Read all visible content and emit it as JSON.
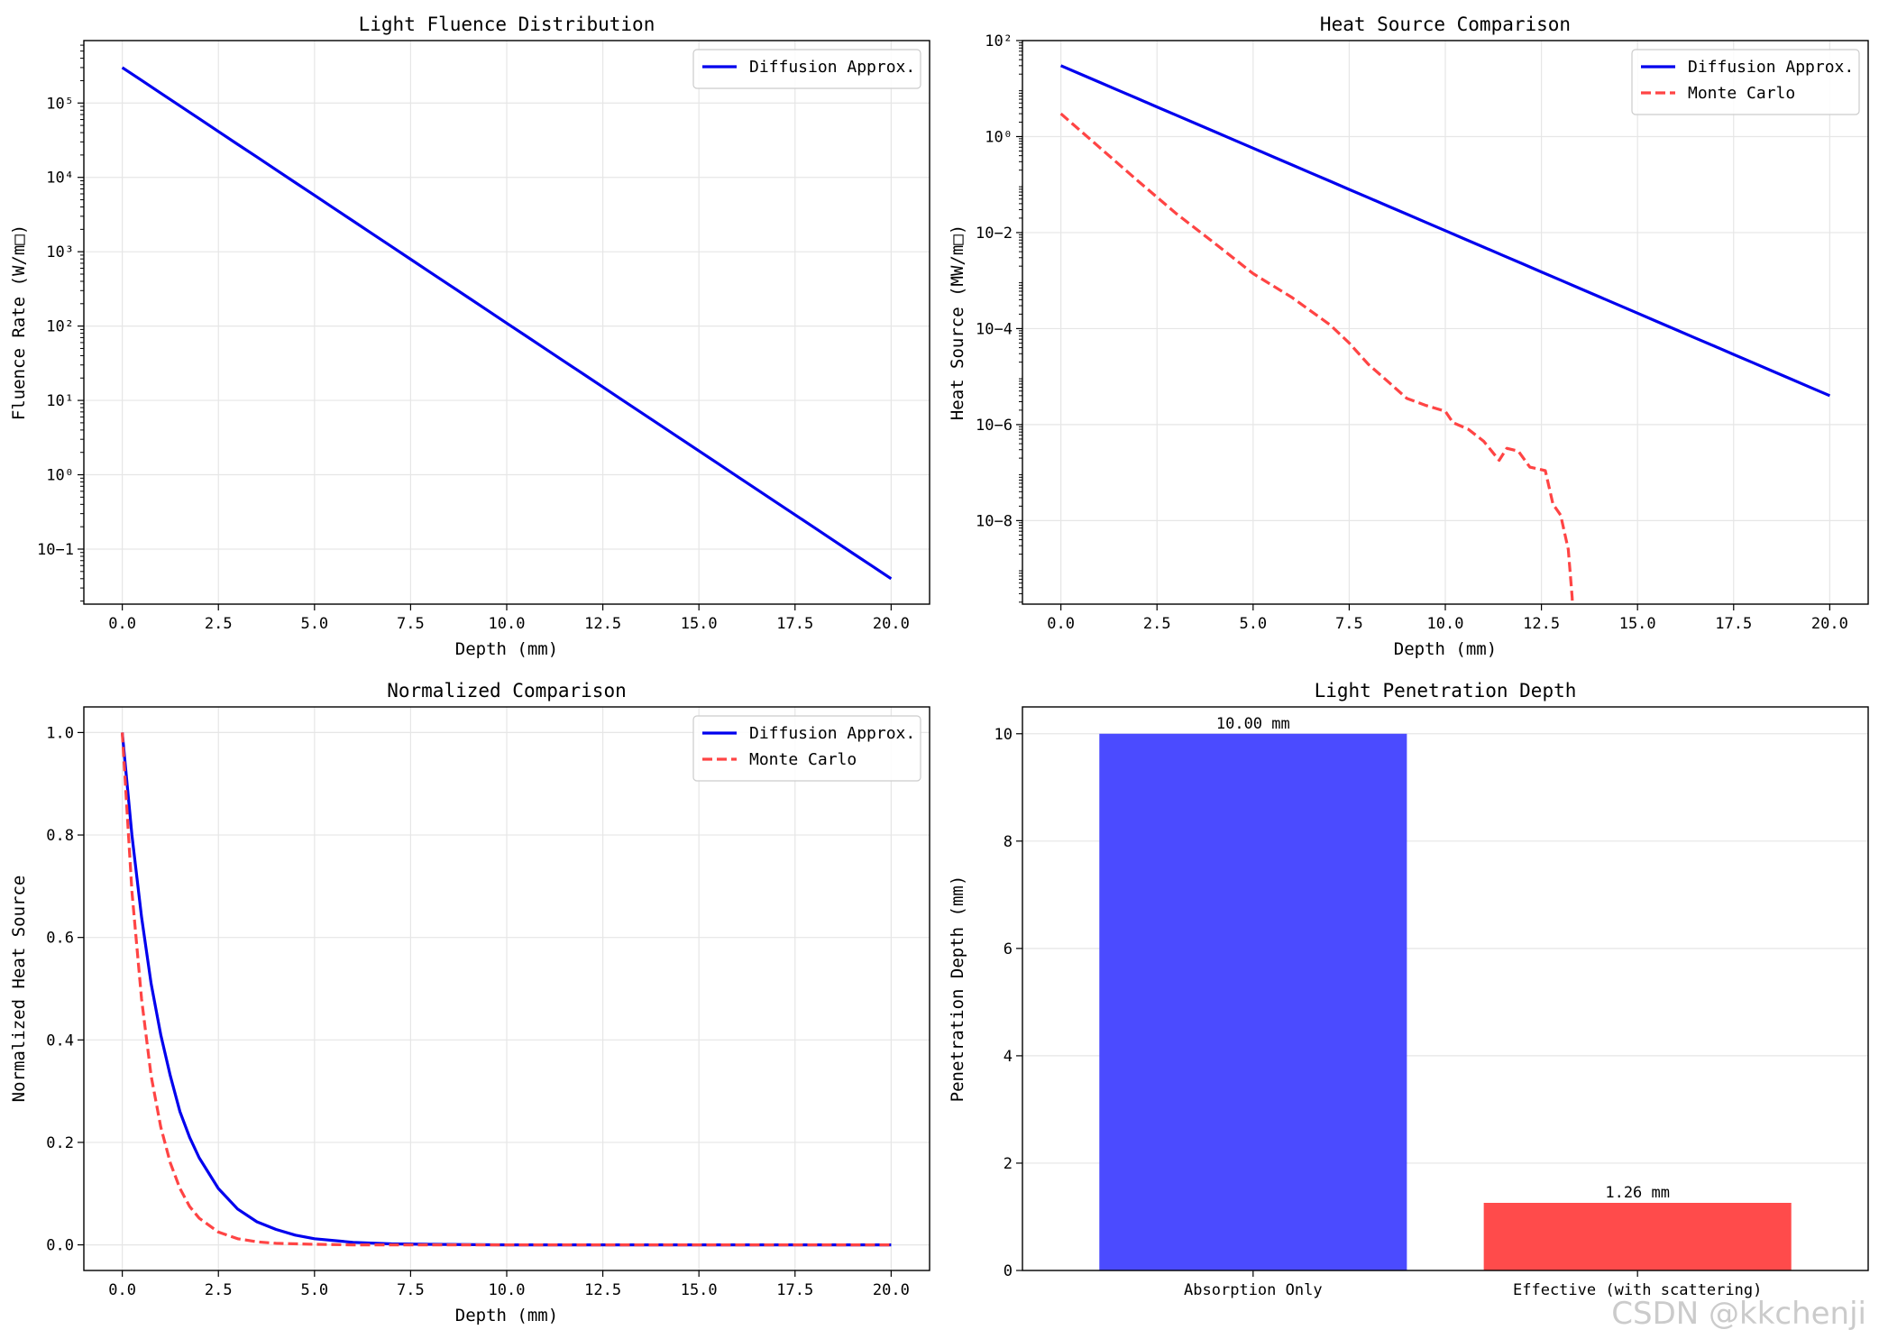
{
  "watermark": "CSDN @kkchenji",
  "chart_data": [
    {
      "type": "line",
      "title": "Light Fluence Distribution",
      "xlabel": "Depth (mm)",
      "ylabel": "Fluence Rate (W/m□)",
      "yscale": "log",
      "xlim": [
        -1.0,
        21.0
      ],
      "ylim_log10": [
        -1.74,
        5.84
      ],
      "xticks": [
        0,
        2.5,
        5,
        7.5,
        10,
        12.5,
        15,
        17.5,
        20
      ],
      "xtick_labels": [
        "0.0",
        "2.5",
        "5.0",
        "7.5",
        "10.0",
        "12.5",
        "15.0",
        "17.5",
        "20.0"
      ],
      "yticks_log10": [
        -1,
        0,
        1,
        2,
        3,
        4,
        5
      ],
      "ytick_labels": [
        "10−1",
        "10⁰",
        "10¹",
        "10²",
        "10³",
        "10⁴",
        "10⁵"
      ],
      "grid": true,
      "legend": "top-right",
      "series": [
        {
          "name": "Diffusion Approx.",
          "color": "#0000ee",
          "style": "solid",
          "x": [
            0,
            20
          ],
          "y": [
            300000,
            0.04
          ]
        }
      ]
    },
    {
      "type": "line",
      "title": "Heat Source Comparison",
      "xlabel": "Depth (mm)",
      "ylabel": "Heat Source (MW/m□)",
      "yscale": "log",
      "xlim": [
        -1.0,
        21.0
      ],
      "ylim_log10": [
        -9.74,
        2.0
      ],
      "xticks": [
        0,
        2.5,
        5,
        7.5,
        10,
        12.5,
        15,
        17.5,
        20
      ],
      "xtick_labels": [
        "0.0",
        "2.5",
        "5.0",
        "7.5",
        "10.0",
        "12.5",
        "15.0",
        "17.5",
        "20.0"
      ],
      "yticks_log10": [
        -8,
        -6,
        -4,
        -2,
        0,
        2
      ],
      "ytick_labels": [
        "10−8",
        "10−6",
        "10−4",
        "10−2",
        "10⁰",
        "10²"
      ],
      "grid": true,
      "legend": "top-right",
      "series": [
        {
          "name": "Diffusion Approx.",
          "color": "#0000ee",
          "style": "solid",
          "x": [
            0,
            20
          ],
          "y": [
            30,
            4e-06
          ]
        },
        {
          "name": "Monte Carlo",
          "color": "#ff4444",
          "style": "dashed",
          "x": [
            0,
            1,
            2,
            3,
            4,
            5,
            6,
            7,
            7.5,
            8,
            8.5,
            9,
            9.5,
            10,
            10.2,
            10.6,
            11.0,
            11.4,
            11.6,
            11.9,
            12.2,
            12.6,
            12.8,
            13.0,
            13.2,
            13.3,
            13.35
          ],
          "y": [
            3,
            0.6,
            0.12,
            0.025,
            0.006,
            0.0014,
            0.00045,
            0.00012,
            5e-05,
            1.8e-05,
            8e-06,
            3.5e-06,
            2.5e-06,
            1.9e-06,
            1.1e-06,
            8e-07,
            4.5e-07,
            1.8e-07,
            3.2e-07,
            2.8e-07,
            1.3e-07,
            1.1e-07,
            2.2e-08,
            1.3e-08,
            2.5e-09,
            2.5e-10,
            2e-11
          ]
        }
      ]
    },
    {
      "type": "line",
      "title": "Normalized Comparison",
      "xlabel": "Depth (mm)",
      "ylabel": "Normalized Heat Source",
      "xlim": [
        -1.0,
        21.0
      ],
      "ylim": [
        -0.05,
        1.05
      ],
      "xticks": [
        0,
        2.5,
        5,
        7.5,
        10,
        12.5,
        15,
        17.5,
        20
      ],
      "xtick_labels": [
        "0.0",
        "2.5",
        "5.0",
        "7.5",
        "10.0",
        "12.5",
        "15.0",
        "17.5",
        "20.0"
      ],
      "yticks": [
        0.0,
        0.2,
        0.4,
        0.6,
        0.8,
        1.0
      ],
      "ytick_labels": [
        "0.0",
        "0.2",
        "0.4",
        "0.6",
        "0.8",
        "1.0"
      ],
      "grid": true,
      "legend": "top-right",
      "series": [
        {
          "name": "Diffusion Approx.",
          "color": "#0000ee",
          "style": "solid",
          "x": [
            0,
            0.25,
            0.5,
            0.75,
            1,
            1.25,
            1.5,
            1.75,
            2,
            2.5,
            3,
            3.5,
            4,
            4.5,
            5,
            6,
            7,
            8,
            10,
            12,
            15,
            20
          ],
          "y": [
            1.0,
            0.8,
            0.64,
            0.51,
            0.41,
            0.33,
            0.26,
            0.21,
            0.17,
            0.11,
            0.07,
            0.045,
            0.03,
            0.019,
            0.012,
            0.005,
            0.002,
            0.001,
            0.0,
            0.0,
            0.0,
            0.0
          ]
        },
        {
          "name": "Monte Carlo",
          "color": "#ff4444",
          "style": "dashed",
          "x": [
            0,
            0.25,
            0.5,
            0.75,
            1,
            1.25,
            1.5,
            1.75,
            2,
            2.5,
            3,
            3.5,
            4,
            5,
            6,
            8,
            10,
            12,
            15,
            20
          ],
          "y": [
            1.0,
            0.69,
            0.48,
            0.33,
            0.23,
            0.16,
            0.11,
            0.075,
            0.052,
            0.025,
            0.012,
            0.006,
            0.003,
            0.001,
            0.0,
            0.0,
            0.0,
            0.0,
            0.0,
            0.0
          ]
        }
      ]
    },
    {
      "type": "bar",
      "title": "Light Penetration Depth",
      "xlabel": "",
      "ylabel": "Penetration Depth (mm)",
      "categories": [
        "Absorption Only",
        "Effective (with scattering)"
      ],
      "values": [
        10.0,
        1.26
      ],
      "colors": [
        "#4b4bff",
        "#ff4b4b"
      ],
      "data_labels": [
        "10.00 mm",
        "1.26 mm"
      ],
      "ylim": [
        0,
        10.5
      ],
      "yticks": [
        0,
        2,
        4,
        6,
        8,
        10
      ],
      "ytick_labels": [
        "0",
        "2",
        "4",
        "6",
        "8",
        "10"
      ],
      "grid": "y"
    }
  ]
}
